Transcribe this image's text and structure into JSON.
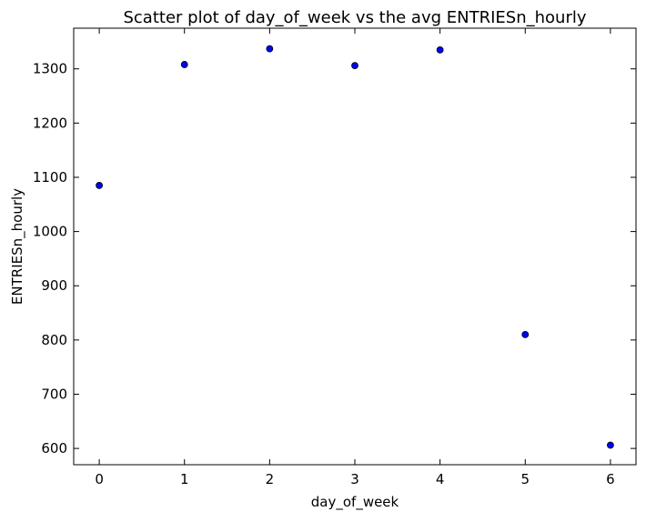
{
  "chart_data": {
    "type": "scatter",
    "title": "Scatter plot of day_of_week vs the avg ENTRIESn_hourly",
    "xlabel": "day_of_week",
    "ylabel": "ENTRIESn_hourly",
    "xlim": [
      -0.3,
      6.3
    ],
    "ylim": [
      570,
      1375
    ],
    "xticks": [
      0,
      1,
      2,
      3,
      4,
      5,
      6
    ],
    "xtick_labels": [
      "0",
      "1",
      "2",
      "3",
      "4",
      "5",
      "6"
    ],
    "yticks": [
      600,
      700,
      800,
      900,
      1000,
      1100,
      1200,
      1300
    ],
    "ytick_labels": [
      "600",
      "700",
      "800",
      "900",
      "1000",
      "1100",
      "1200",
      "1300"
    ],
    "grid": false,
    "legend": "none",
    "series": [
      {
        "x": [
          0,
          1,
          2,
          3,
          4,
          5,
          6
        ],
        "y": [
          1085,
          1308,
          1337,
          1306,
          1335,
          810,
          606
        ],
        "color": "#0000ff",
        "edge_color": "#000000"
      }
    ]
  }
}
